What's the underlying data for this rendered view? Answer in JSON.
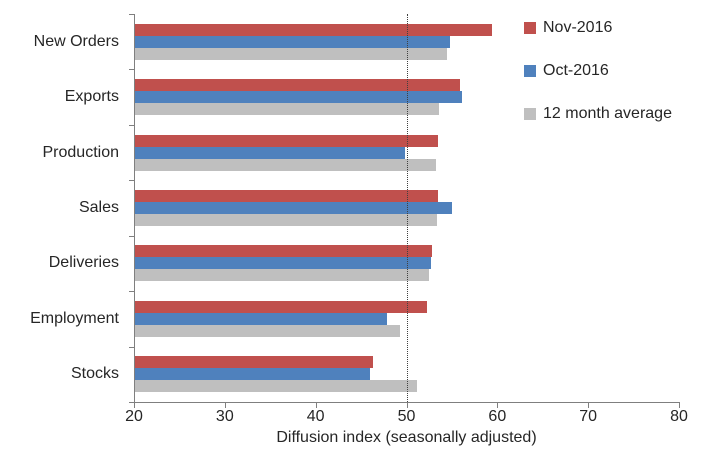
{
  "chart_data": {
    "type": "bar",
    "orientation": "horizontal",
    "title": "",
    "xlabel": "Diffusion index (seasonally adjusted)",
    "ylabel": "",
    "xlim": [
      20,
      80
    ],
    "xticks": [
      20,
      30,
      40,
      50,
      60,
      70,
      80
    ],
    "reference_line": 50,
    "grid": false,
    "legend_position": "right-top",
    "categories": [
      "New Orders",
      "Exports",
      "Production",
      "Sales",
      "Deliveries",
      "Employment",
      "Stocks"
    ],
    "series": [
      {
        "name": "Nov-2016",
        "color": "#C0504D",
        "values": [
          59.4,
          55.9,
          53.5,
          53.5,
          52.8,
          52.3,
          46.3
        ]
      },
      {
        "name": "Oct-2016",
        "color": "#4F81BD",
        "values": [
          54.8,
          56.1,
          49.8,
          55.0,
          52.7,
          47.8,
          46.0
        ]
      },
      {
        "name": "12 month average",
        "color": "#BFBFBF",
        "values": [
          54.5,
          53.6,
          53.3,
          53.4,
          52.5,
          49.3,
          51.2
        ]
      }
    ]
  },
  "colors": {
    "axis_line": "#7f7f7f",
    "text": "#262626",
    "reference_line": "#404040",
    "background": "#ffffff"
  }
}
